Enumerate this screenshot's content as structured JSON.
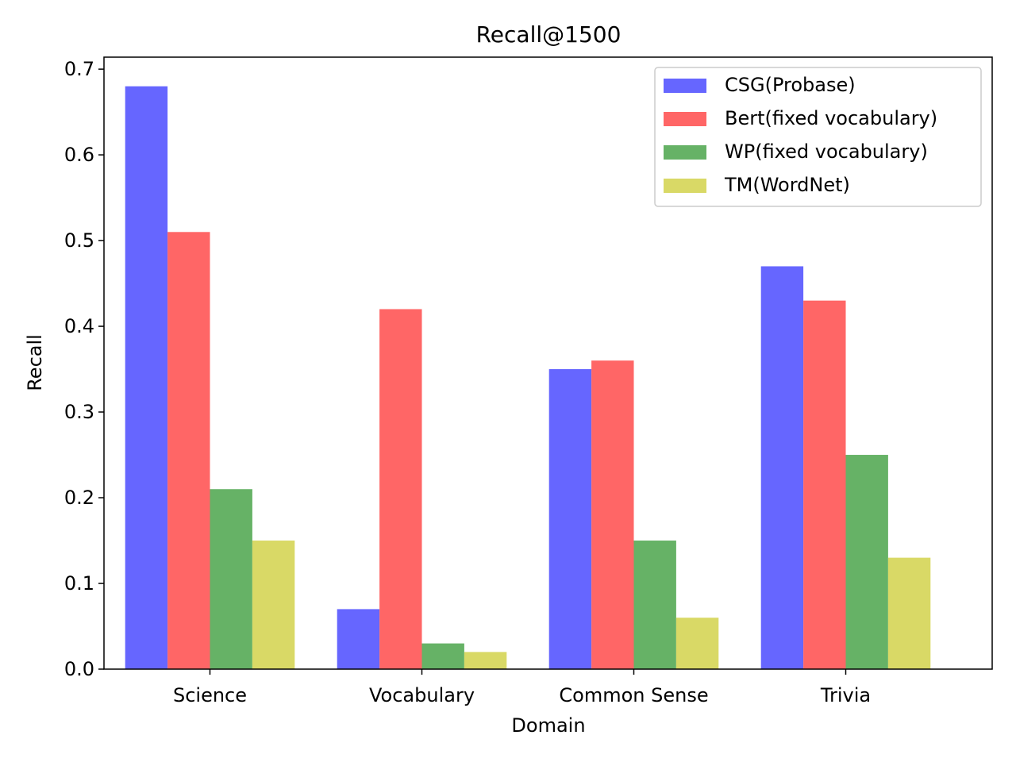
{
  "chart_data": {
    "type": "bar",
    "title": "Recall@1500",
    "xlabel": "Domain",
    "ylabel": "Recall",
    "categories": [
      "Science",
      "Vocabulary",
      "Common Sense",
      "Trivia"
    ],
    "series": [
      {
        "name": "CSG(Probase)",
        "color": "#6666ff",
        "values": [
          0.68,
          0.07,
          0.35,
          0.47
        ]
      },
      {
        "name": "Bert(fixed vocabulary)",
        "color": "#ff6666",
        "values": [
          0.51,
          0.42,
          0.36,
          0.43
        ]
      },
      {
        "name": "WP(fixed vocabulary)",
        "color": "#66b266",
        "values": [
          0.21,
          0.03,
          0.15,
          0.25
        ]
      },
      {
        "name": "TM(WordNet)",
        "color": "#d9d966",
        "values": [
          0.15,
          0.02,
          0.06,
          0.13
        ]
      }
    ],
    "ylim": [
      0,
      0.714
    ],
    "yticks": [
      "0.0",
      "0.1",
      "0.2",
      "0.3",
      "0.4",
      "0.5",
      "0.6",
      "0.7"
    ],
    "legend_position": "top-right",
    "grid": false
  }
}
